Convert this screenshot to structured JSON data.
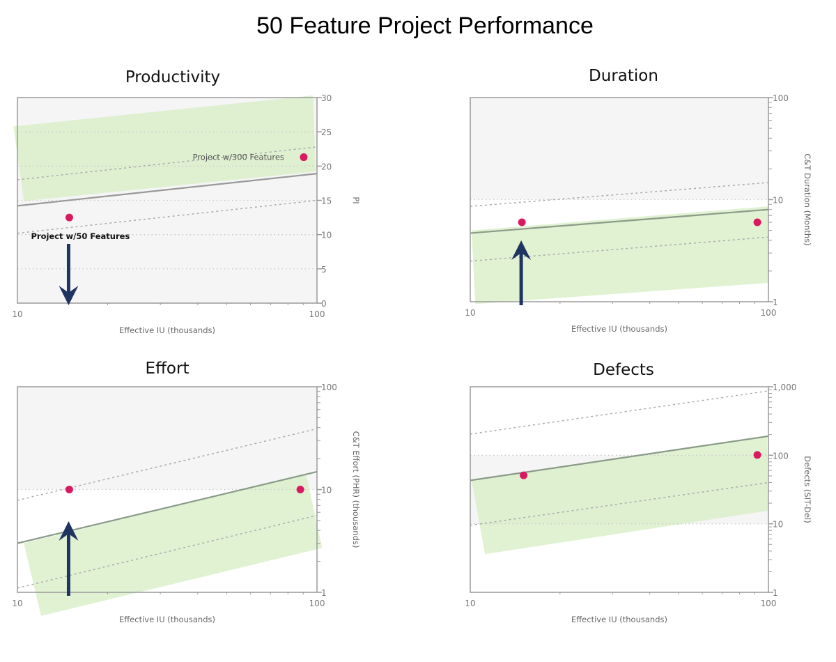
{
  "title": "50 Feature Project Performance",
  "colors": {
    "point": "#d81b60",
    "trend": "#8a9a88",
    "band": "#d9efc8",
    "arrow": "#1f3461",
    "shade": "#f5f5f5"
  },
  "chart_data": [
    {
      "type": "scatter",
      "title": "Productivity",
      "xlabel": "Effective IU (thousands)",
      "ylabel": "PI",
      "xscale": "log",
      "xlim": [
        10,
        100
      ],
      "xticks": [
        "10",
        "100"
      ],
      "yscale": "linear",
      "ylim": [
        0,
        30
      ],
      "yticks": [
        "0",
        "5",
        "10",
        "15",
        "20",
        "25",
        "30"
      ],
      "grid": "dotted horizontal",
      "shaded_range": [
        0,
        30
      ],
      "points": [
        {
          "x": 14.9,
          "y": 12.5
        },
        {
          "x": 90.3,
          "y": 21.3
        }
      ],
      "trend": [
        [
          10,
          14.2
        ],
        [
          100,
          18.9
        ]
      ],
      "upper_dashed": [
        [
          10,
          18.0
        ],
        [
          100,
          22.8
        ]
      ],
      "lower_dashed": [
        [
          10,
          10.2
        ],
        [
          100,
          15.0
        ]
      ],
      "band": [
        [
          9.7,
          25.8
        ],
        [
          97,
          30.3
        ],
        [
          99,
          19.2
        ],
        [
          10.5,
          14.9
        ]
      ],
      "annotations": [
        {
          "text": "Project w/300 Features",
          "x": 90.3,
          "y": 21.3,
          "bold": false
        },
        {
          "text": "Project w/50 Features",
          "x": 14.9,
          "y": 12.5,
          "bold": true
        }
      ],
      "arrow": {
        "x": 14.9,
        "direction": "down"
      }
    },
    {
      "type": "scatter",
      "title": "Duration",
      "xlabel": "Effective IU (thousands)",
      "ylabel": "C&T Duration (Months)",
      "xscale": "log",
      "xlim": [
        10,
        100
      ],
      "xticks": [
        "10",
        "100"
      ],
      "yscale": "log",
      "ylim": [
        1,
        100
      ],
      "yticks": [
        "1",
        "10",
        "100"
      ],
      "grid": "dotted horizontal",
      "shaded_range": [
        10,
        100
      ],
      "points": [
        {
          "x": 14.9,
          "y": 6.0
        },
        {
          "x": 91.8,
          "y": 6.0
        }
      ],
      "trend": [
        [
          10,
          4.7
        ],
        [
          100,
          8.0
        ]
      ],
      "upper_dashed": [
        [
          10,
          8.6
        ],
        [
          100,
          14.7
        ]
      ],
      "lower_dashed": [
        [
          10,
          2.5
        ],
        [
          100,
          4.3
        ]
      ],
      "band": [
        [
          10.1,
          5.0
        ],
        [
          100,
          8.6
        ],
        [
          100,
          1.53
        ],
        [
          10.4,
          0.95
        ]
      ],
      "annotations": [],
      "arrow": {
        "x": 14.9,
        "direction": "up"
      }
    },
    {
      "type": "scatter",
      "title": "Effort",
      "xlabel": "Effective IU (thousands)",
      "ylabel": "C&T Effort (PHR) (thousands)",
      "xscale": "log",
      "xlim": [
        10,
        100
      ],
      "xticks": [
        "10",
        "100"
      ],
      "yscale": "log",
      "ylim": [
        1,
        100
      ],
      "yticks": [
        "1",
        "10",
        "100"
      ],
      "grid": "dotted horizontal",
      "shaded_range": [
        10,
        100
      ],
      "points": [
        {
          "x": 14.9,
          "y": 10
        },
        {
          "x": 88,
          "y": 10
        }
      ],
      "trend": [
        [
          10,
          3.0
        ],
        [
          100,
          14.9
        ]
      ],
      "upper_dashed": [
        [
          10,
          7.85
        ],
        [
          100,
          39
        ]
      ],
      "lower_dashed": [
        [
          10,
          1.1
        ],
        [
          100,
          5.6
        ]
      ],
      "band": [
        [
          10.5,
          3.0
        ],
        [
          92,
          14.2
        ],
        [
          104,
          2.7
        ],
        [
          12,
          0.59
        ]
      ],
      "annotations": [],
      "arrow": {
        "x": 14.9,
        "direction": "up"
      }
    },
    {
      "type": "scatter",
      "title": "Defects",
      "xlabel": "Effective IU (thousands)",
      "ylabel": "Defects (SIT-Del)",
      "xscale": "log",
      "xlim": [
        10,
        100
      ],
      "xticks": [
        "10",
        "100"
      ],
      "yscale": "log",
      "ylim": [
        1,
        1000
      ],
      "yticks": [
        "1",
        "10",
        "100",
        "1,000"
      ],
      "grid": "dotted horizontal",
      "shaded_range": [
        10,
        100
      ],
      "points": [
        {
          "x": 15.1,
          "y": 51
        },
        {
          "x": 91.8,
          "y": 101
        }
      ],
      "trend": [
        [
          10,
          43
        ],
        [
          100,
          190
        ]
      ],
      "upper_dashed": [
        [
          10,
          204
        ],
        [
          100,
          870
        ]
      ],
      "lower_dashed": [
        [
          10,
          9.5
        ],
        [
          100,
          40
        ]
      ],
      "band": [
        [
          10.1,
          44
        ],
        [
          99,
          195
        ],
        [
          99.5,
          15.5
        ],
        [
          11.2,
          3.6
        ]
      ],
      "annotations": [],
      "arrow": null
    }
  ]
}
